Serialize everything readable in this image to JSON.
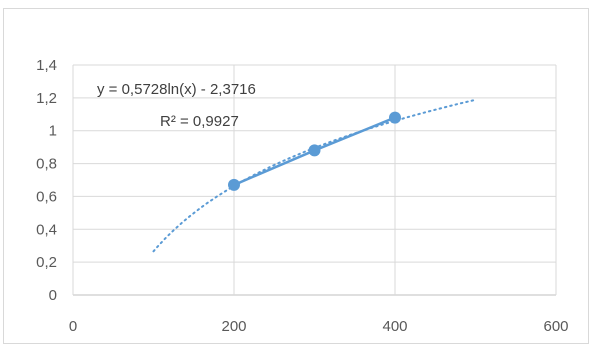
{
  "chart_data": {
    "type": "scatter",
    "title": "",
    "xlabel": "",
    "ylabel": "",
    "xlim": [
      0,
      600
    ],
    "ylim": [
      0,
      1.4
    ],
    "x_ticks": [
      "0",
      "200",
      "400",
      "600"
    ],
    "y_ticks": [
      "0",
      "0,2",
      "0,4",
      "0,6",
      "0,8",
      "1",
      "1,2",
      "1,4"
    ],
    "grid": true,
    "legend": "none",
    "series": [
      {
        "x": [
          200,
          300,
          400
        ],
        "y": [
          0.67,
          0.88,
          1.08
        ],
        "color": "#5b9bd5",
        "markers": true,
        "line": "solid"
      }
    ],
    "trendline": {
      "kind": "logarithmic",
      "a": 0.5728,
      "b": -2.3716,
      "x_range": [
        100,
        500
      ],
      "color": "#5b9bd5",
      "line": "dotted",
      "equation_label": "y = 0,5728ln(x) - 2,3716",
      "r2_label": "R² = 0,9927"
    }
  }
}
